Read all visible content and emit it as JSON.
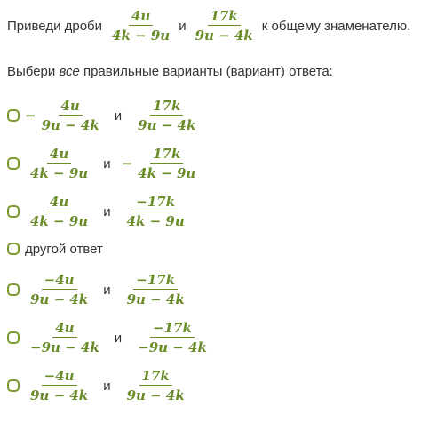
{
  "question": {
    "prefix": "Приведи дроби",
    "frac1": {
      "num": "4u",
      "den": "4k − 9u"
    },
    "conj": "и",
    "frac2": {
      "num": "17k",
      "den": "9u − 4k"
    },
    "suffix": "к общему знаменателю."
  },
  "instruction": {
    "before": "Выбери",
    "emph": "все",
    "after": "правильные варианты (вариант) ответа:"
  },
  "colors": {
    "accent": "#6a8d2a",
    "checkbox_border": "#7a9a2e",
    "text": "#333333"
  },
  "options": [
    {
      "a_sign": "−",
      "a_num": "4u",
      "a_den": "9u − 4k",
      "conj": "и",
      "b_sign": "",
      "b_num": "17k",
      "b_den": "9u − 4k"
    },
    {
      "a_sign": "",
      "a_num": "4u",
      "a_den": "4k − 9u",
      "conj": "и",
      "b_sign": "−",
      "b_num": "17k",
      "b_den": "4k − 9u"
    },
    {
      "a_sign": "",
      "a_num": "4u",
      "a_den": "4k − 9u",
      "conj": "и",
      "b_sign": "",
      "b_num": "−17k",
      "b_den": "4k − 9u"
    },
    {
      "text": "другой ответ"
    },
    {
      "a_sign": "",
      "a_num": "−4u",
      "a_den": "9u − 4k",
      "conj": "и",
      "b_sign": "",
      "b_num": "−17k",
      "b_den": "9u − 4k"
    },
    {
      "a_sign": "",
      "a_num": "4u",
      "a_den": "−9u − 4k",
      "conj": "и",
      "b_sign": "",
      "b_num": "−17k",
      "b_den": "−9u − 4k"
    },
    {
      "a_sign": "",
      "a_num": "−4u",
      "a_den": "9u − 4k",
      "conj": "и",
      "b_sign": "",
      "b_num": "17k",
      "b_den": "9u − 4k"
    }
  ]
}
